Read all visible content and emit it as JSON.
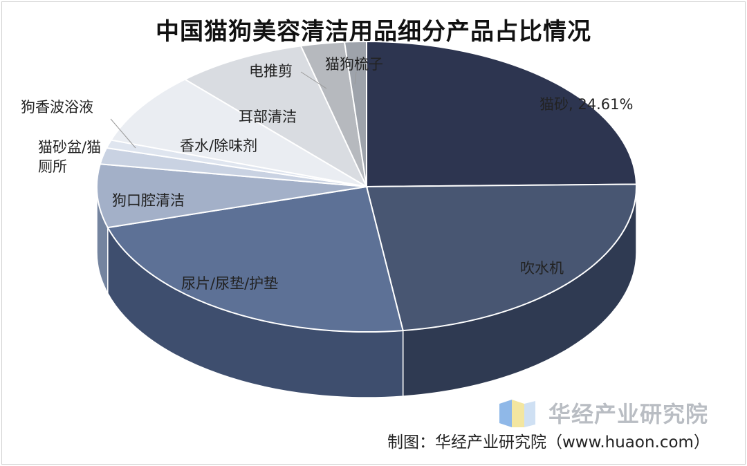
{
  "title": "中国猫狗美容清洁用品细分产品占比情况",
  "chart_data": {
    "type": "pie",
    "slices": [
      {
        "label": "猫砂, 24.61%",
        "value": 24.61,
        "color": "#2d3550",
        "side": "#1c2236"
      },
      {
        "label": "吹水机",
        "value": 23.0,
        "color": "#485672",
        "side": "#2f3a52"
      },
      {
        "label": "尿片/尿垫/护垫",
        "value": 22.5,
        "color": "#5d7196",
        "side": "#3e4e6e"
      },
      {
        "label": "狗口腔清洁",
        "value": 7.0,
        "color": "#a3b0c8",
        "side": "#74849f"
      },
      {
        "label": "猫砂盆/猫\n厕所",
        "value": 1.8,
        "color": "#c9d2e2",
        "side": "#98a5bb"
      },
      {
        "label": "狗香波浴液",
        "value": 0.9,
        "color": "#dfe5ef",
        "side": "#b2bccd"
      },
      {
        "label": "香水/除味剂",
        "value": 8.0,
        "color": "#eaedf2",
        "side": "#bfc4cd"
      },
      {
        "label": "耳部清洁",
        "value": 7.8,
        "color": "#d9dce1",
        "side": "#aeb2b9"
      },
      {
        "label": "电推剪",
        "value": 2.6,
        "color": "#b6b9be",
        "side": "#8d9096"
      },
      {
        "label": "猫狗梳子",
        "value": 1.3,
        "color": "#9ea3ab",
        "side": "#7a7f87"
      }
    ]
  },
  "watermark": {
    "name": "华经产业研究院"
  },
  "caption": "制图：华经产业研究院（www.huaon.com）"
}
